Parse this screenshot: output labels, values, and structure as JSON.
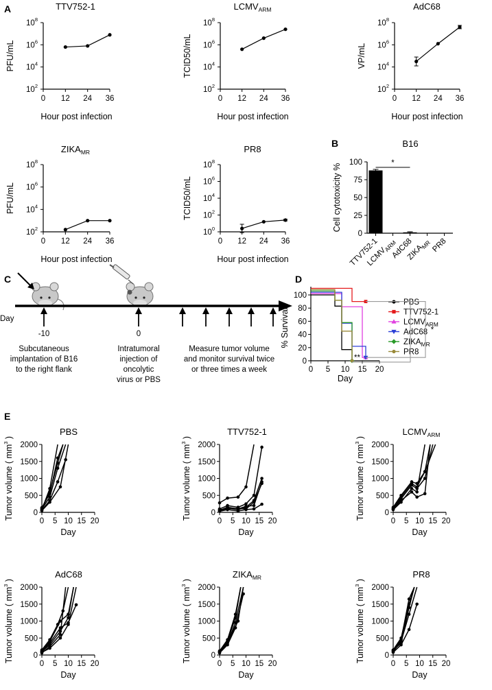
{
  "panel_labels": {
    "a": "A",
    "b": "B",
    "c": "C",
    "d": "D",
    "e": "E"
  },
  "timeline": {
    "day_label": "Day",
    "marks": [
      "-10",
      "0"
    ],
    "step1_lines": [
      "Subcutaneous",
      "implantation of B16",
      "to the right flank"
    ],
    "step2_lines": [
      "Intratumoral",
      "injection of",
      "oncolytic",
      "virus or PBS"
    ],
    "step3_lines": [
      "Measure tumor volume",
      "and monitor survival twice",
      "or three times a week"
    ]
  },
  "colors": {
    "black": "#000000",
    "red": "#e41a1c",
    "magenta": "#e040e0",
    "blue": "#2b3fd6",
    "green": "#2a9a2a",
    "olive": "#9a8a3a",
    "grey": "#9a9a9a"
  },
  "chart_data": [
    {
      "id": "ttv",
      "type": "line",
      "title": "TTV752-1",
      "title_sub": "",
      "ylabel": "PFU/mL",
      "xlabel": "Hour post infection",
      "yscale": "log",
      "ylim": [
        2,
        8
      ],
      "yticks": [
        2,
        4,
        6,
        8
      ],
      "ytick_base": "10",
      "xlim": [
        0,
        36
      ],
      "xticks": [
        0,
        12,
        24,
        36
      ],
      "series": [
        {
          "name": "TTV752-1",
          "x": [
            12,
            24,
            36
          ],
          "y": [
            5.8,
            5.9,
            6.9
          ],
          "err": [
            0,
            0,
            0
          ]
        }
      ]
    },
    {
      "id": "lcmv",
      "type": "line",
      "title": "LCMV",
      "title_sub": "ARM",
      "ylabel": "TCID50/mL",
      "xlabel": "Hour post infection",
      "yscale": "log",
      "ylim": [
        2,
        8
      ],
      "yticks": [
        2,
        4,
        6,
        8
      ],
      "ytick_base": "10",
      "xlim": [
        0,
        36
      ],
      "xticks": [
        0,
        12,
        24,
        36
      ],
      "series": [
        {
          "name": "LCMV ARM",
          "x": [
            12,
            24,
            36
          ],
          "y": [
            5.6,
            6.6,
            7.4
          ],
          "err": [
            0,
            0,
            0
          ]
        }
      ]
    },
    {
      "id": "adc",
      "type": "line",
      "title": "AdC68",
      "title_sub": "",
      "ylabel": "VP/mL",
      "xlabel": "Hour post infection",
      "yscale": "log",
      "ylim": [
        2,
        8
      ],
      "yticks": [
        2,
        4,
        6,
        8
      ],
      "ytick_base": "10",
      "xlim": [
        0,
        36
      ],
      "xticks": [
        0,
        12,
        24,
        36
      ],
      "series": [
        {
          "name": "AdC68",
          "x": [
            12,
            24,
            36
          ],
          "y": [
            4.5,
            6.1,
            7.6
          ],
          "err": [
            0.4,
            0,
            0.15
          ]
        }
      ]
    },
    {
      "id": "zika",
      "type": "line",
      "title": "ZIKA",
      "title_sub": "MR",
      "ylabel": "PFU/mL",
      "xlabel": "Hour post infection",
      "yscale": "log",
      "ylim": [
        2,
        8
      ],
      "yticks": [
        2,
        4,
        6,
        8
      ],
      "ytick_base": "10",
      "xlim": [
        0,
        36
      ],
      "xticks": [
        0,
        12,
        24,
        36
      ],
      "series": [
        {
          "name": "ZIKA MR",
          "x": [
            12,
            24,
            36
          ],
          "y": [
            2.2,
            3.0,
            3.0
          ],
          "err": [
            0,
            0,
            0
          ]
        }
      ]
    },
    {
      "id": "pr8",
      "type": "line",
      "title": "PR8",
      "title_sub": "",
      "ylabel": "TCID50/mL",
      "xlabel": "Hour post infection",
      "yscale": "log",
      "ylim": [
        0,
        8
      ],
      "yticks": [
        0,
        2,
        4,
        6,
        8
      ],
      "ytick_base": "10",
      "xlim": [
        0,
        36
      ],
      "xticks": [
        0,
        12,
        24,
        36
      ],
      "series": [
        {
          "name": "PR8",
          "x": [
            12,
            24,
            36
          ],
          "y": [
            0.4,
            1.2,
            1.4
          ],
          "err": [
            0.5,
            0,
            0.1
          ]
        }
      ]
    },
    {
      "id": "b16",
      "type": "bar",
      "title": "B16",
      "ylabel": "Cell cytotoxicity %",
      "ylim": [
        0,
        100
      ],
      "yticks": [
        0,
        25,
        50,
        75,
        100
      ],
      "categories": [
        {
          "name": "TTV752-1",
          "sub": ""
        },
        {
          "name": "LCMV",
          "sub": "ARM"
        },
        {
          "name": "AdC68",
          "sub": ""
        },
        {
          "name": "ZIKA",
          "sub": "MR"
        },
        {
          "name": "PR8",
          "sub": ""
        }
      ],
      "values": [
        88,
        0,
        1.2,
        0,
        0
      ],
      "errors": [
        1.5,
        0,
        0.8,
        0,
        0
      ],
      "significance": "*"
    },
    {
      "id": "surv",
      "type": "line",
      "ylabel": "% Survival",
      "xlabel": "Day",
      "ylim": [
        0,
        100
      ],
      "yticks": [
        0,
        20,
        40,
        60,
        80,
        100
      ],
      "xlim": [
        0,
        20
      ],
      "xticks": [
        0,
        5,
        10,
        15,
        20
      ],
      "series": [
        {
          "name": "PBS",
          "sub": "",
          "color": "#000000",
          "marker": "dot",
          "steps": [
            [
              0,
              100
            ],
            [
              7,
              83
            ],
            [
              9,
              17
            ],
            [
              12,
              0
            ]
          ],
          "end": 12
        },
        {
          "name": "TTV752-1",
          "sub": "",
          "color": "#e41a1c",
          "marker": "square",
          "steps": [
            [
              0,
              110
            ],
            [
              12,
              90
            ]
          ],
          "end": 16
        },
        {
          "name": "LCMV",
          "sub": "ARM",
          "color": "#e040e0",
          "marker": "triangle",
          "steps": [
            [
              0,
              102
            ],
            [
              9,
              82
            ],
            [
              15,
              5
            ]
          ],
          "end": 16
        },
        {
          "name": "AdC68",
          "sub": "",
          "color": "#2b3fd6",
          "marker": "triangle-down",
          "steps": [
            [
              0,
              104
            ],
            [
              9,
              57
            ],
            [
              12,
              22
            ],
            [
              16,
              5
            ]
          ],
          "end": 16
        },
        {
          "name": "ZIKA",
          "sub": "MR",
          "color": "#2a9a2a",
          "marker": "diamond",
          "steps": [
            [
              0,
              106
            ],
            [
              7,
              92
            ],
            [
              9,
              58
            ],
            [
              12,
              0
            ]
          ],
          "end": 12
        },
        {
          "name": "PR8",
          "sub": "",
          "color": "#9a8a3a",
          "marker": "dot",
          "steps": [
            [
              0,
              108
            ],
            [
              7,
              92
            ],
            [
              9,
              45
            ],
            [
              12,
              0
            ]
          ],
          "end": 12
        }
      ],
      "significance": [
        "*",
        "**"
      ]
    },
    {
      "id": "e_pbs",
      "type": "line",
      "title": "PBS",
      "title_sub": "",
      "ylabel": "Tumor volume ( mm",
      "ylabel_sup": "3",
      "ylabel_end": " )",
      "xlabel": "Day",
      "ylim": [
        0,
        2000
      ],
      "yticks": [
        0,
        500,
        1000,
        1500,
        2000
      ],
      "xlim": [
        0,
        20
      ],
      "xticks": [
        0,
        5,
        10,
        15,
        20
      ],
      "series": [
        {
          "x": [
            0,
            3,
            6,
            9
          ],
          "y": [
            100,
            450,
            1300,
            2000
          ]
        },
        {
          "x": [
            0,
            3,
            6,
            8
          ],
          "y": [
            120,
            600,
            1450,
            2000
          ]
        },
        {
          "x": [
            0,
            3,
            6,
            9
          ],
          "y": [
            60,
            350,
            900,
            1550
          ]
        },
        {
          "x": [
            0,
            3,
            6,
            8
          ],
          "y": [
            140,
            550,
            1600,
            2000
          ]
        },
        {
          "x": [
            0,
            3,
            6
          ],
          "y": [
            80,
            700,
            2000
          ]
        },
        {
          "x": [
            0,
            3,
            7,
            10
          ],
          "y": [
            50,
            300,
            750,
            2000
          ]
        }
      ]
    },
    {
      "id": "e_ttv",
      "type": "line",
      "title": "TTV752-1",
      "title_sub": "",
      "ylabel": "Tumor volume ( mm",
      "ylabel_sup": "3",
      "ylabel_end": " )",
      "xlabel": "Day",
      "ylim": [
        0,
        2000
      ],
      "yticks": [
        0,
        500,
        1000,
        1500,
        2000
      ],
      "xlim": [
        0,
        20
      ],
      "xticks": [
        0,
        5,
        10,
        15,
        20
      ],
      "series": [
        {
          "x": [
            0,
            3,
            7,
            10,
            13
          ],
          "y": [
            280,
            420,
            450,
            750,
            2000
          ]
        },
        {
          "x": [
            0,
            3,
            7,
            10,
            13,
            16
          ],
          "y": [
            100,
            200,
            150,
            250,
            500,
            1920
          ]
        },
        {
          "x": [
            0,
            3,
            7,
            10,
            13,
            16
          ],
          "y": [
            50,
            120,
            80,
            150,
            350,
            1000
          ]
        },
        {
          "x": [
            0,
            3,
            7,
            10,
            13,
            16
          ],
          "y": [
            80,
            100,
            120,
            100,
            300,
            850
          ]
        },
        {
          "x": [
            0,
            3,
            7,
            10,
            13,
            16
          ],
          "y": [
            30,
            80,
            40,
            80,
            100,
            240
          ]
        },
        {
          "x": [
            0,
            3,
            7,
            10,
            13,
            16
          ],
          "y": [
            60,
            150,
            100,
            180,
            200,
            900
          ]
        }
      ]
    },
    {
      "id": "e_lcmv",
      "type": "line",
      "title": "LCMV",
      "title_sub": "ARM",
      "ylabel": "Tumor volume ( mm",
      "ylabel_sup": "3",
      "ylabel_end": " )",
      "xlabel": "Day",
      "ylim": [
        0,
        2000
      ],
      "yticks": [
        0,
        500,
        1000,
        1500,
        2000
      ],
      "xlim": [
        0,
        20
      ],
      "xticks": [
        0,
        5,
        10,
        15,
        20
      ],
      "series": [
        {
          "x": [
            0,
            3,
            7,
            9,
            12,
            14
          ],
          "y": [
            150,
            500,
            900,
            850,
            1200,
            2000
          ]
        },
        {
          "x": [
            0,
            3,
            7,
            9,
            12,
            15
          ],
          "y": [
            100,
            400,
            800,
            700,
            1000,
            2000
          ]
        },
        {
          "x": [
            0,
            3,
            7,
            9,
            12
          ],
          "y": [
            80,
            300,
            700,
            600,
            2000
          ]
        },
        {
          "x": [
            0,
            3,
            7,
            9,
            12,
            16
          ],
          "y": [
            120,
            450,
            850,
            750,
            1200,
            2000
          ]
        },
        {
          "x": [
            0,
            3,
            7,
            9,
            12,
            14
          ],
          "y": [
            90,
            350,
            600,
            450,
            550,
            2000
          ]
        }
      ]
    },
    {
      "id": "e_adc",
      "type": "line",
      "title": "AdC68",
      "title_sub": "",
      "ylabel": "Tumor volume ( mm",
      "ylabel_sup": "3",
      "ylabel_end": " )",
      "xlabel": "Day",
      "ylim": [
        0,
        2000
      ],
      "yticks": [
        0,
        500,
        1000,
        1500,
        2000
      ],
      "xlim": [
        0,
        20
      ],
      "xticks": [
        0,
        5,
        10,
        15,
        20
      ],
      "series": [
        {
          "x": [
            0,
            3,
            6,
            8,
            10
          ],
          "y": [
            150,
            450,
            900,
            1300,
            2000
          ]
        },
        {
          "x": [
            0,
            3,
            7,
            10,
            12
          ],
          "y": [
            100,
            300,
            700,
            1100,
            2000
          ]
        },
        {
          "x": [
            0,
            3,
            7,
            10,
            13
          ],
          "y": [
            80,
            200,
            500,
            900,
            2000
          ]
        },
        {
          "x": [
            0,
            3,
            7,
            10,
            12
          ],
          "y": [
            120,
            400,
            1000,
            1200,
            2000
          ]
        },
        {
          "x": [
            0,
            3,
            7,
            9
          ],
          "y": [
            60,
            250,
            600,
            2000
          ]
        },
        {
          "x": [
            0,
            3,
            7,
            10,
            13
          ],
          "y": [
            100,
            350,
            800,
            950,
            1480
          ]
        }
      ]
    },
    {
      "id": "e_zika",
      "type": "line",
      "title": "ZIKA",
      "title_sub": "MR",
      "ylabel": "Tumor volume ( mm",
      "ylabel_sup": "3",
      "ylabel_end": " )",
      "xlabel": "Day",
      "ylim": [
        0,
        2000
      ],
      "yticks": [
        0,
        500,
        1000,
        1500,
        2000
      ],
      "xlim": [
        0,
        20
      ],
      "xticks": [
        0,
        5,
        10,
        15,
        20
      ],
      "series": [
        {
          "x": [
            0,
            3,
            6,
            8
          ],
          "y": [
            100,
            400,
            1100,
            2000
          ]
        },
        {
          "x": [
            0,
            3,
            6,
            9
          ],
          "y": [
            80,
            350,
            950,
            2000
          ]
        },
        {
          "x": [
            0,
            3,
            6,
            8
          ],
          "y": [
            120,
            450,
            1200,
            2000
          ]
        },
        {
          "x": [
            0,
            3,
            6,
            9
          ],
          "y": [
            60,
            300,
            800,
            1800
          ]
        },
        {
          "x": [
            0,
            3,
            7,
            9
          ],
          "y": [
            90,
            380,
            1000,
            2000
          ]
        }
      ]
    },
    {
      "id": "e_pr8",
      "type": "line",
      "title": "PR8",
      "title_sub": "",
      "ylabel": "Tumor volume ( mm",
      "ylabel_sup": "3",
      "ylabel_end": " )",
      "xlabel": "Day",
      "ylim": [
        0,
        2000
      ],
      "yticks": [
        0,
        500,
        1000,
        1500,
        2000
      ],
      "xlim": [
        0,
        20
      ],
      "xticks": [
        0,
        5,
        10,
        15,
        20
      ],
      "series": [
        {
          "x": [
            0,
            3,
            6,
            8
          ],
          "y": [
            150,
            500,
            1500,
            2000
          ]
        },
        {
          "x": [
            0,
            3,
            6,
            9
          ],
          "y": [
            100,
            400,
            1200,
            2000
          ]
        },
        {
          "x": [
            0,
            3,
            6,
            8
          ],
          "y": [
            120,
            450,
            1650,
            2000
          ]
        },
        {
          "x": [
            0,
            3,
            6,
            9
          ],
          "y": [
            80,
            300,
            750,
            1500
          ]
        },
        {
          "x": [
            0,
            3,
            6,
            8
          ],
          "y": [
            140,
            350,
            1400,
            2000
          ]
        }
      ]
    }
  ]
}
